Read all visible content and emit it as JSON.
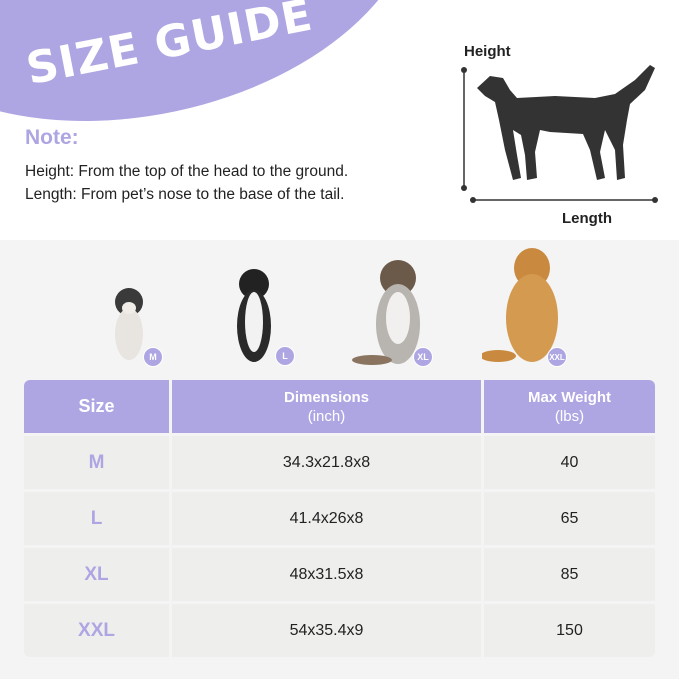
{
  "header": {
    "title": "SIZE GUIDE"
  },
  "note": {
    "heading": "Note:",
    "lines": [
      "Height: From the top of the head to the ground.",
      "Length: From pet’s nose to the base of the tail."
    ]
  },
  "diagram": {
    "height_label": "Height",
    "length_label": "Length",
    "icon": "dog-silhouette-icon"
  },
  "dogs": [
    {
      "badge": "M"
    },
    {
      "badge": "L"
    },
    {
      "badge": "XL"
    },
    {
      "badge": "XXL"
    }
  ],
  "colors": {
    "accent": "#aea6e3",
    "cell": "#eeefed",
    "background": "#f4f4f4"
  },
  "table": {
    "headers": [
      "Size",
      "Dimensions\n(inch)",
      "Max Weight\n(lbs)"
    ],
    "header_lines": [
      [
        "Size"
      ],
      [
        "Dimensions",
        "(inch)"
      ],
      [
        "Max Weight",
        "(lbs)"
      ]
    ],
    "rows": [
      [
        "M",
        "34.3x21.8x8",
        "40"
      ],
      [
        "L",
        "41.4x26x8",
        "65"
      ],
      [
        "XL",
        "48x31.5x8",
        "85"
      ],
      [
        "XXL",
        "54x35.4x9",
        "150"
      ]
    ]
  }
}
